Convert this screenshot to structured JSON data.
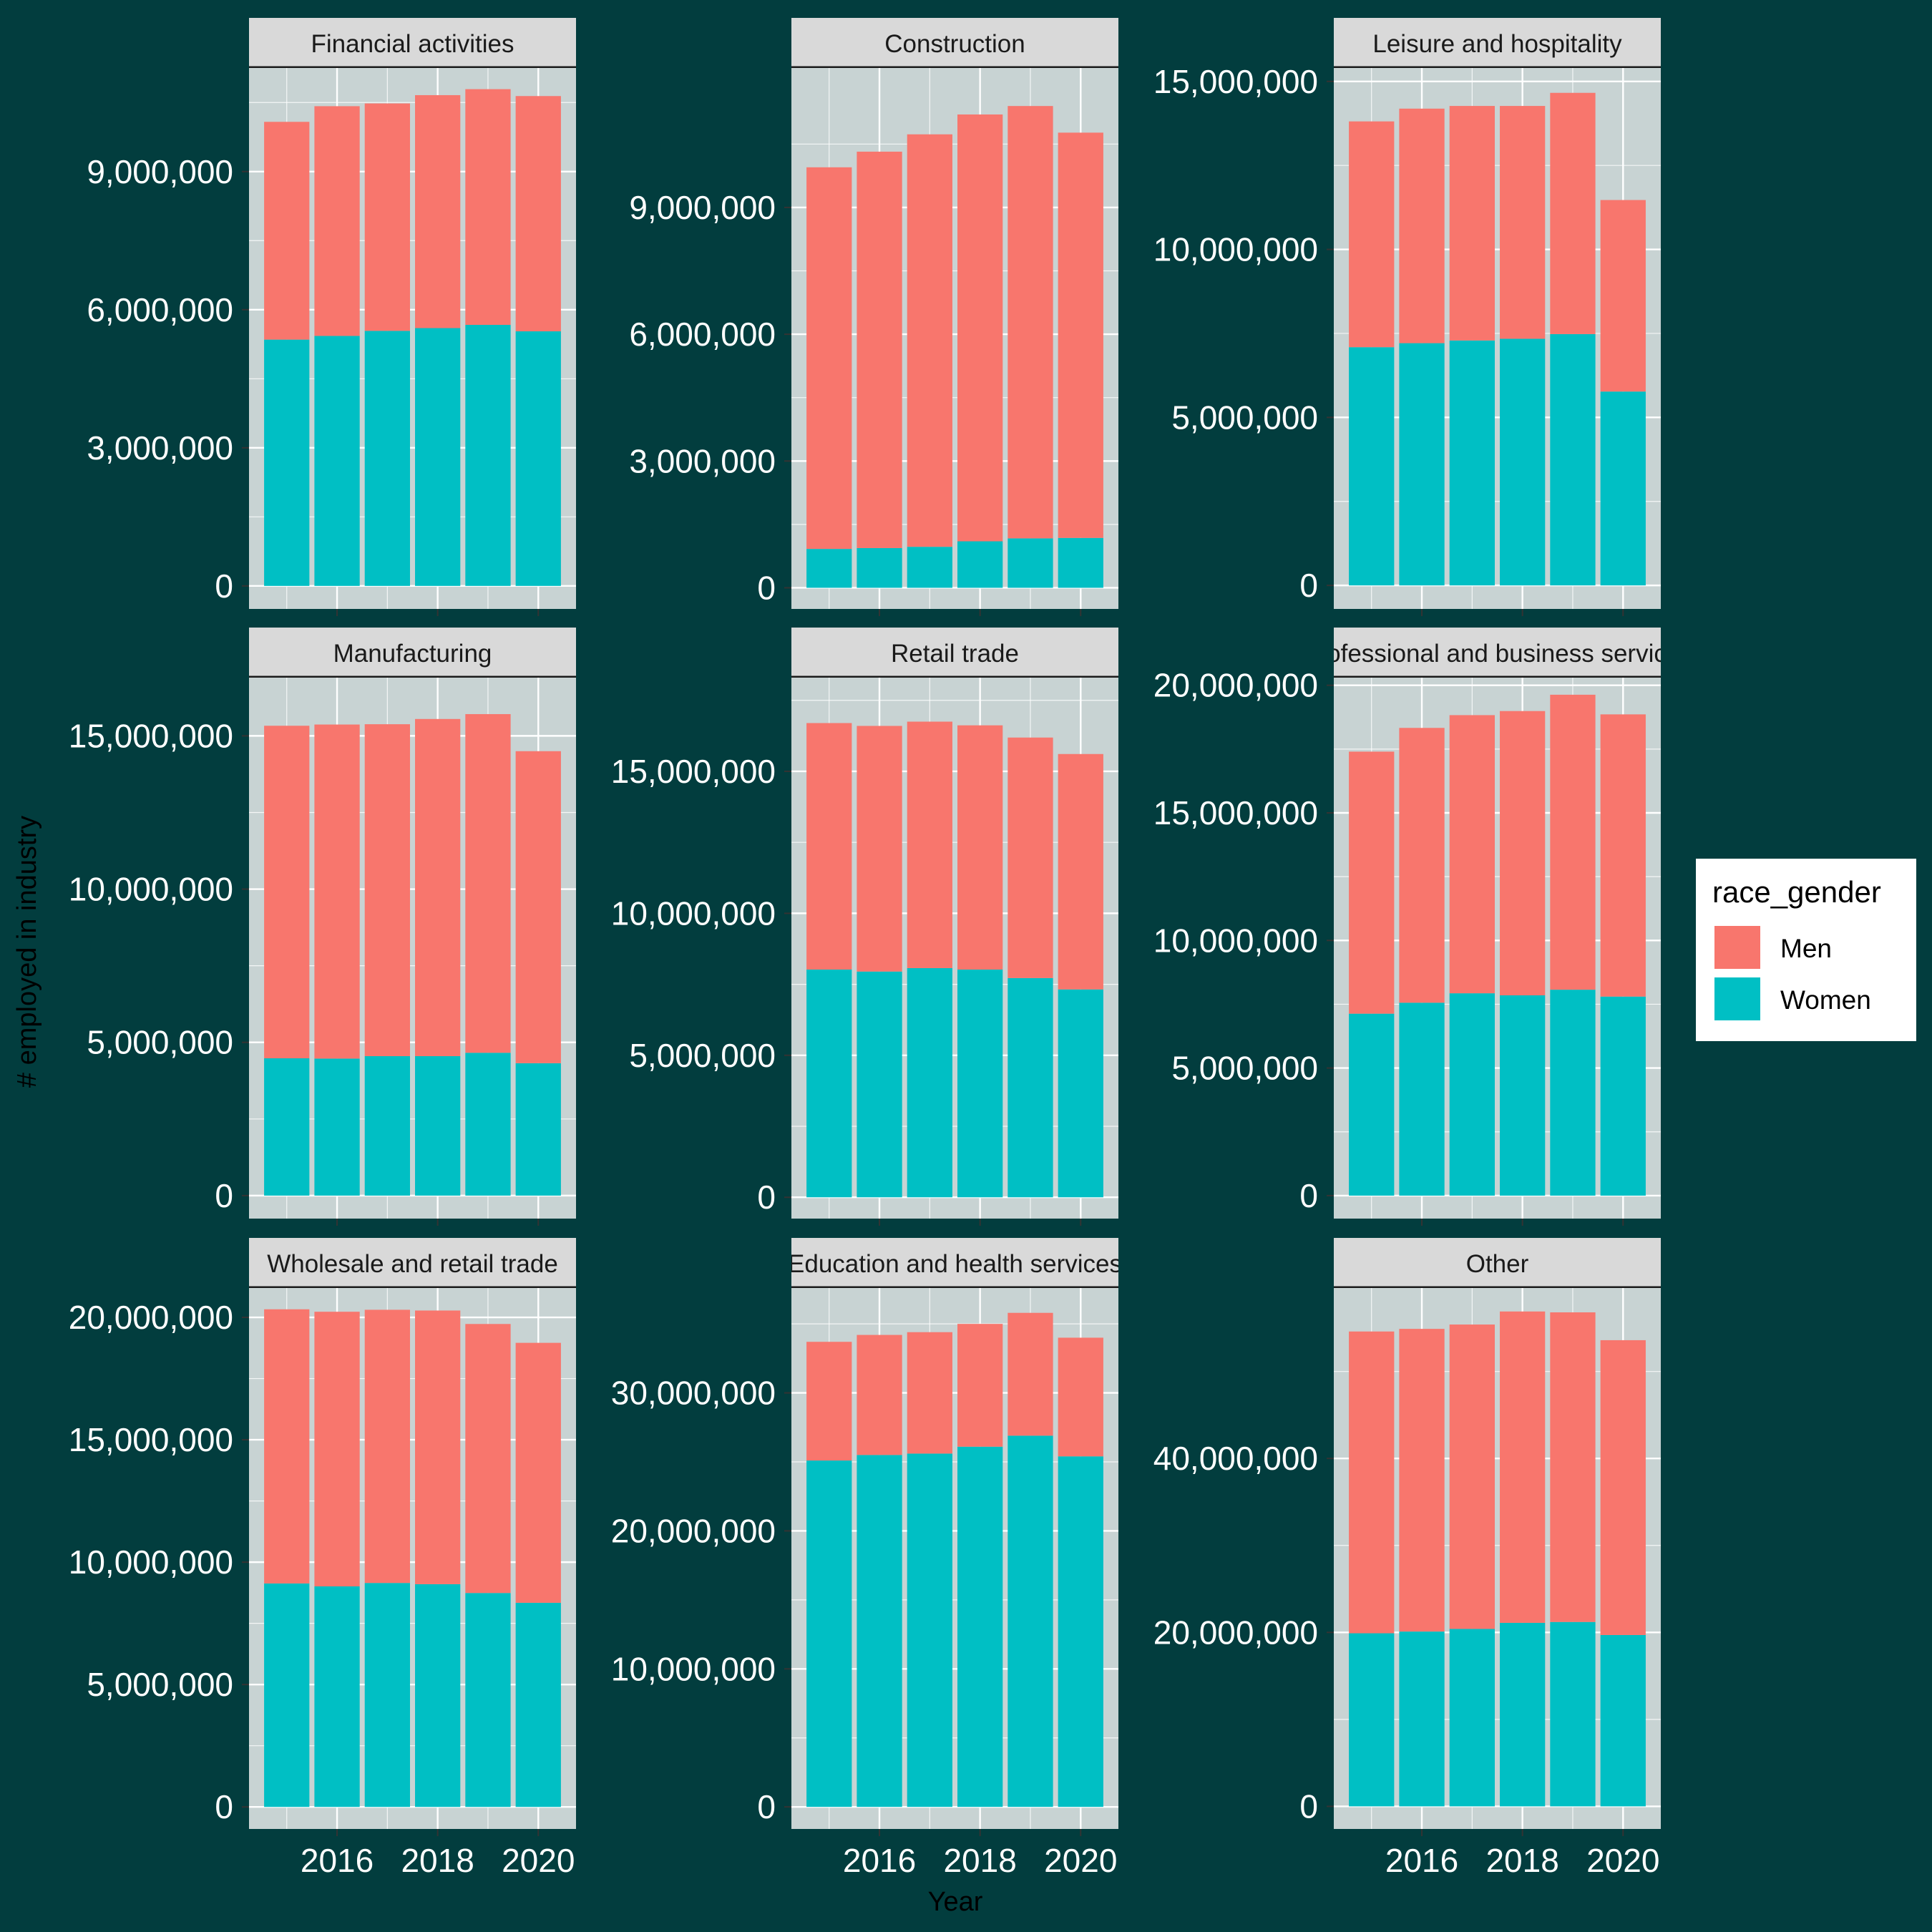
{
  "chart_data": {
    "type": "bar",
    "stacked": true,
    "facet_layout": "3x3",
    "xlabel": "Year",
    "ylabel": "# employed in industry",
    "x_ticks": [
      2016,
      2018,
      2020
    ],
    "legend": {
      "title": "race_gender",
      "placement": "right",
      "entries": [
        {
          "name": "Men",
          "color": "#f8766d"
        },
        {
          "name": "Women",
          "color": "#00bfc4"
        }
      ]
    },
    "colors": {
      "background": "#023d3e",
      "panel": "#c8d3d3",
      "strip": "#d9d9d9",
      "grid": "#ffffff",
      "men": "#f8766d",
      "women": "#00bfc4"
    },
    "years": [
      2015,
      2016,
      2017,
      2018,
      2019,
      2020
    ],
    "panels": [
      {
        "title": "Financial activities",
        "ylim": [
          -500000,
          11250000
        ],
        "y_ticks": [
          0,
          3000000,
          6000000,
          9000000
        ],
        "y_tick_labels": [
          "0",
          "3,000,000",
          "6,000,000",
          "9,000,000"
        ],
        "women": [
          5350000,
          5430000,
          5540000,
          5600000,
          5670000,
          5530000
        ],
        "men": [
          4730000,
          4990000,
          4940000,
          5060000,
          5120000,
          5110000
        ]
      },
      {
        "title": "Construction",
        "ylim": [
          -500000,
          12300000
        ],
        "y_ticks": [
          0,
          3000000,
          6000000,
          9000000
        ],
        "y_tick_labels": [
          "0",
          "3,000,000",
          "6,000,000",
          "9,000,000"
        ],
        "women": [
          920000,
          940000,
          970000,
          1100000,
          1170000,
          1180000
        ],
        "men": [
          9030000,
          9380000,
          9760000,
          10100000,
          10230000,
          9590000
        ]
      },
      {
        "title": "Leisure and hospitality",
        "ylim": [
          -700000,
          15400000
        ],
        "y_ticks": [
          0,
          5000000,
          10000000,
          15000000
        ],
        "y_tick_labels": [
          "0",
          "5,000,000",
          "10,000,000",
          "15,000,000"
        ],
        "women": [
          7090000,
          7210000,
          7290000,
          7340000,
          7480000,
          5770000
        ],
        "men": [
          6720000,
          6980000,
          6980000,
          6930000,
          7180000,
          5700000
        ]
      },
      {
        "title": "Manufacturing",
        "ylim": [
          -750000,
          16900000
        ],
        "y_ticks": [
          0,
          5000000,
          10000000,
          15000000
        ],
        "y_tick_labels": [
          "0",
          "5,000,000",
          "10,000,000",
          "15,000,000"
        ],
        "women": [
          4480000,
          4470000,
          4550000,
          4550000,
          4660000,
          4320000
        ],
        "men": [
          10850000,
          10900000,
          10830000,
          11000000,
          11050000,
          10180000
        ]
      },
      {
        "title": "Retail trade",
        "ylim": [
          -750000,
          18300000
        ],
        "y_ticks": [
          0,
          5000000,
          10000000,
          15000000
        ],
        "y_tick_labels": [
          "0",
          "5,000,000",
          "10,000,000",
          "15,000,000"
        ],
        "women": [
          8020000,
          7950000,
          8070000,
          8020000,
          7720000,
          7320000
        ],
        "men": [
          8680000,
          8650000,
          8680000,
          8600000,
          8470000,
          8290000
        ]
      },
      {
        "title": "Professional and business services",
        "ylim": [
          -900000,
          20300000
        ],
        "y_ticks": [
          0,
          5000000,
          10000000,
          15000000,
          20000000
        ],
        "y_tick_labels": [
          "0",
          "5,000,000",
          "10,000,000",
          "15,000,000",
          "20,000,000"
        ],
        "women": [
          7130000,
          7560000,
          7930000,
          7850000,
          8070000,
          7800000
        ],
        "men": [
          10270000,
          10770000,
          10900000,
          11140000,
          11560000,
          11060000
        ]
      },
      {
        "title": "Wholesale and retail trade",
        "ylim": [
          -900000,
          21200000
        ],
        "y_ticks": [
          0,
          5000000,
          10000000,
          15000000,
          20000000
        ],
        "y_tick_labels": [
          "0",
          "5,000,000",
          "10,000,000",
          "15,000,000",
          "20,000,000"
        ],
        "women": [
          9130000,
          9010000,
          9150000,
          9100000,
          8740000,
          8340000
        ],
        "men": [
          11200000,
          11220000,
          11160000,
          11180000,
          10990000,
          10620000
        ]
      },
      {
        "title": "Education and health services",
        "ylim": [
          -1600000,
          37600000
        ],
        "y_ticks": [
          0,
          10000000,
          20000000,
          30000000
        ],
        "y_tick_labels": [
          "0",
          "10,000,000",
          "20,000,000",
          "30,000,000"
        ],
        "women": [
          25100000,
          25500000,
          25600000,
          26100000,
          26900000,
          25400000
        ],
        "men": [
          8600000,
          8700000,
          8800000,
          8900000,
          8900000,
          8600000
        ]
      },
      {
        "title": "Other",
        "ylim": [
          -2600000,
          59600000
        ],
        "y_ticks": [
          20000000,
          40000000
        ],
        "y_tick_labels": [
          "20,000,000",
          "40,000,000"
        ],
        "y_zero_label": "0",
        "women": [
          19900000,
          20100000,
          20400000,
          21100000,
          21200000,
          19700000
        ],
        "men": [
          34700000,
          34800000,
          35000000,
          35800000,
          35600000,
          33900000
        ]
      }
    ]
  }
}
